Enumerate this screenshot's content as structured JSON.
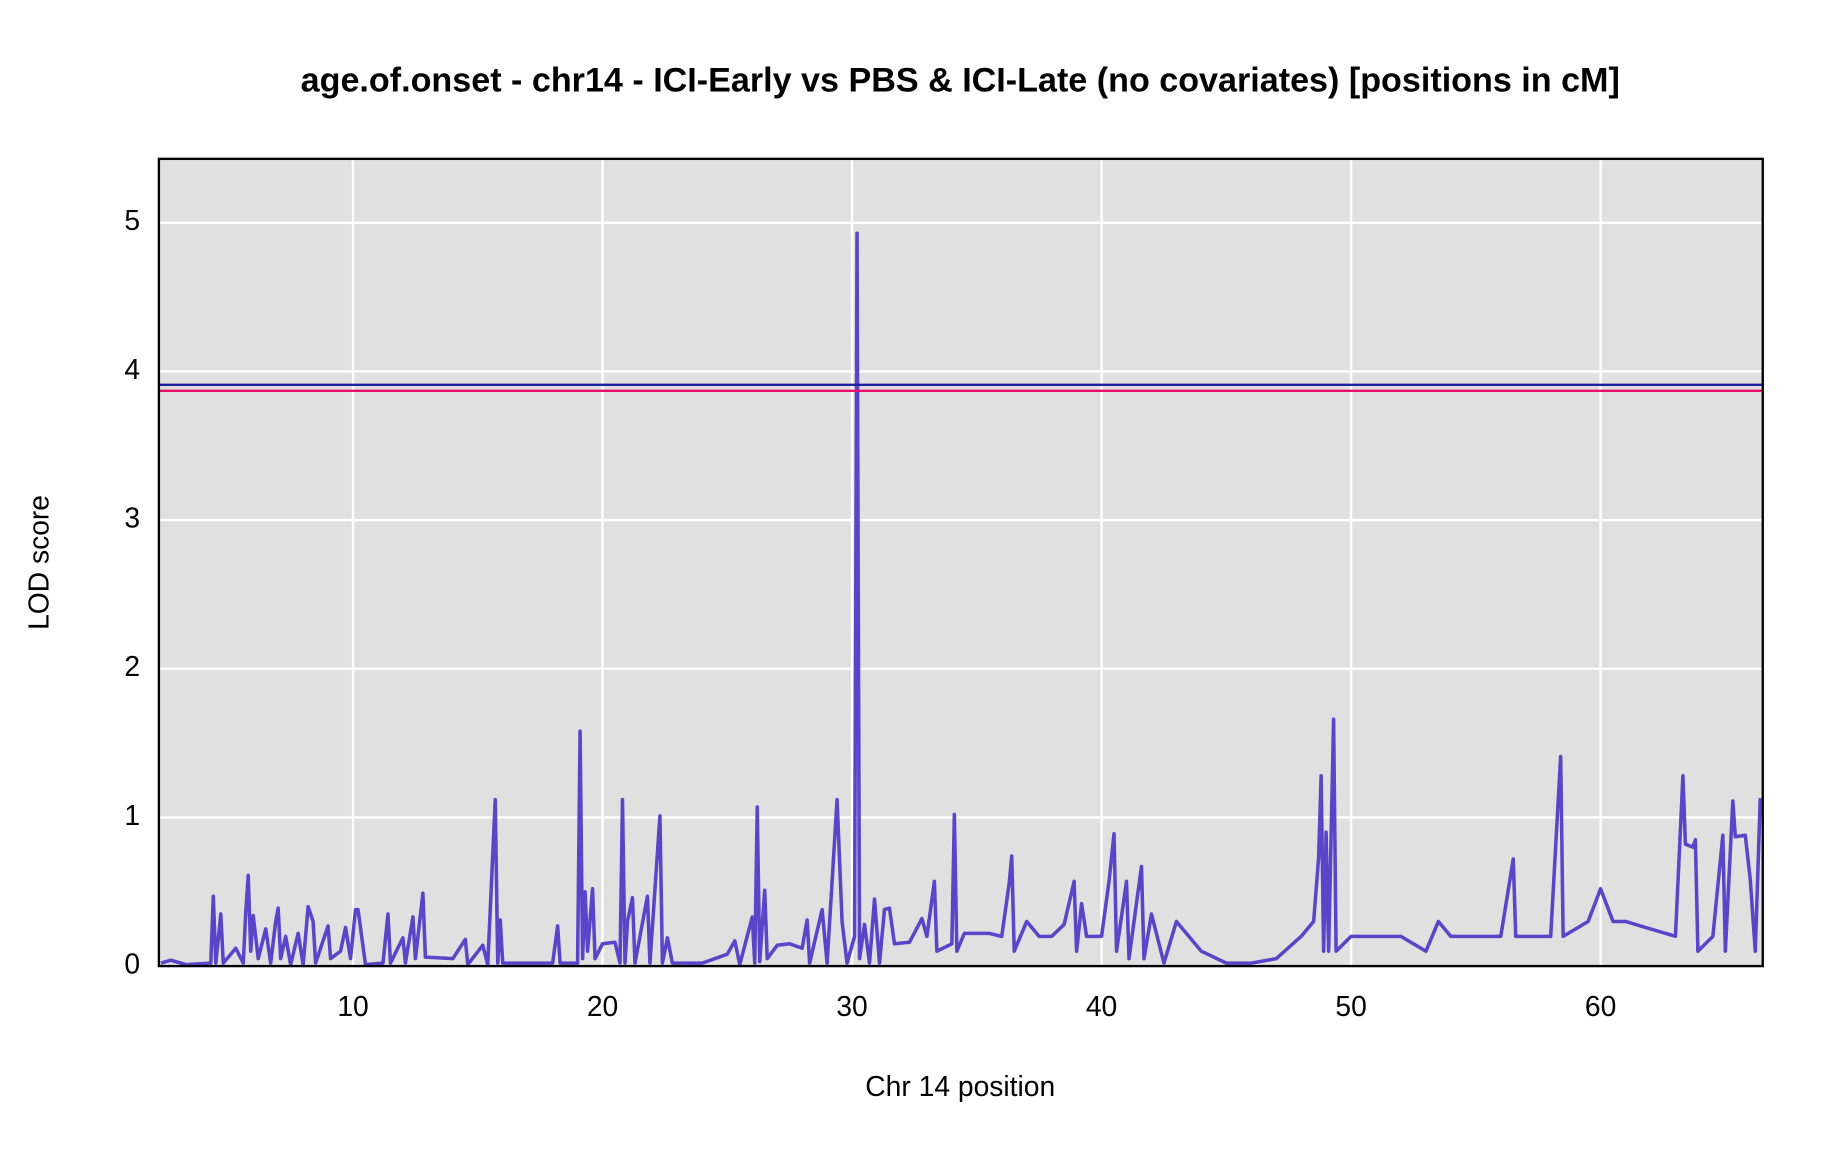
{
  "chart_data": {
    "type": "line",
    "title": "age.of.onset - chr14 - ICI-Early vs PBS & ICI-Late (no covariates) [positions in cM]",
    "xlabel": "Chr 14 position",
    "ylabel": "LOD score",
    "xlim": [
      2.22,
      66.5
    ],
    "ylim": [
      0,
      5.43
    ],
    "xticks": [
      10,
      20,
      30,
      40,
      50,
      60
    ],
    "yticks": [
      0,
      1,
      2,
      3,
      4,
      5
    ],
    "grid": true,
    "background": "#e0e0e0",
    "hlines": [
      {
        "value": 3.91,
        "color": "#1f1fa0"
      },
      {
        "value": 3.87,
        "color": "#e8106e"
      }
    ],
    "series": [
      {
        "color": "#5a44c8",
        "x": [
          2.3,
          2.7,
          3.3,
          4.3,
          4.4,
          4.5,
          4.7,
          4.8,
          5.3,
          5.6,
          5.7,
          5.8,
          5.9,
          6.0,
          6.2,
          6.5,
          6.7,
          6.9,
          7.0,
          7.1,
          7.3,
          7.5,
          7.8,
          8.0,
          8.2,
          8.4,
          8.5,
          9.0,
          9.1,
          9.5,
          9.7,
          9.9,
          10.1,
          10.2,
          10.5,
          11.2,
          11.4,
          11.5,
          12.0,
          12.1,
          12.4,
          12.5,
          12.8,
          12.9,
          14.0,
          14.5,
          14.6,
          15.2,
          15.4,
          15.7,
          15.8,
          15.9,
          16.0,
          17.0,
          18.0,
          18.2,
          18.3,
          19.0,
          19.1,
          19.2,
          19.3,
          19.4,
          19.6,
          19.7,
          20.0,
          20.5,
          20.7,
          20.8,
          20.9,
          21.0,
          21.2,
          21.3,
          21.8,
          21.9,
          22.3,
          22.4,
          22.6,
          22.8,
          24.0,
          25.0,
          25.3,
          25.5,
          26.0,
          26.1,
          26.2,
          26.3,
          26.5,
          26.6,
          27.0,
          27.5,
          28.0,
          28.2,
          28.3,
          28.8,
          29.0,
          29.4,
          29.6,
          29.8,
          30.1,
          30.2,
          30.3,
          30.5,
          30.7,
          30.9,
          31.1,
          31.3,
          31.5,
          31.7,
          32.3,
          32.8,
          33.0,
          33.3,
          33.4,
          34.0,
          34.1,
          34.2,
          34.5,
          35.5,
          36.0,
          36.3,
          36.4,
          36.5,
          37.0,
          37.5,
          38.0,
          38.5,
          38.9,
          39.0,
          39.2,
          39.4,
          40.0,
          40.3,
          40.5,
          40.6,
          41.0,
          41.1,
          41.6,
          41.7,
          42.0,
          42.5,
          43.0,
          44.0,
          45.0,
          46.0,
          47.0,
          48.0,
          48.5,
          48.7,
          48.8,
          48.9,
          49.0,
          49.1,
          49.3,
          49.4,
          50.0,
          51.0,
          52.0,
          53.0,
          53.5,
          54.0,
          55.0,
          56.0,
          56.5,
          56.6,
          58.0,
          58.4,
          58.5,
          59.5,
          60.0,
          60.5,
          61.0,
          62.0,
          63.0,
          63.3,
          63.4,
          63.7,
          63.8,
          63.9,
          64.5,
          64.9,
          65.0,
          65.3,
          65.4,
          65.8,
          66.0,
          66.2,
          66.4
        ],
        "values": [
          0.02,
          0.04,
          0.01,
          0.02,
          0.47,
          0.02,
          0.35,
          0.02,
          0.12,
          0.02,
          0.36,
          0.61,
          0.1,
          0.34,
          0.05,
          0.25,
          0.02,
          0.3,
          0.39,
          0.05,
          0.2,
          0.01,
          0.22,
          0.01,
          0.4,
          0.3,
          0.02,
          0.27,
          0.05,
          0.1,
          0.26,
          0.05,
          0.38,
          0.38,
          0.01,
          0.02,
          0.35,
          0.02,
          0.19,
          0.02,
          0.33,
          0.05,
          0.49,
          0.06,
          0.05,
          0.18,
          0.01,
          0.14,
          0.01,
          1.12,
          0.02,
          0.31,
          0.02,
          0.02,
          0.02,
          0.27,
          0.02,
          0.02,
          1.58,
          0.05,
          0.5,
          0.1,
          0.52,
          0.05,
          0.15,
          0.16,
          0.02,
          1.12,
          0.02,
          0.3,
          0.46,
          0.02,
          0.47,
          0.02,
          1.01,
          0.02,
          0.19,
          0.02,
          0.02,
          0.08,
          0.17,
          0.01,
          0.33,
          0.02,
          1.07,
          0.03,
          0.51,
          0.05,
          0.14,
          0.15,
          0.12,
          0.31,
          0.02,
          0.38,
          0.02,
          1.12,
          0.3,
          0.02,
          0.2,
          4.93,
          0.05,
          0.28,
          0.02,
          0.45,
          0.02,
          0.38,
          0.39,
          0.15,
          0.16,
          0.32,
          0.2,
          0.57,
          0.1,
          0.15,
          1.02,
          0.1,
          0.22,
          0.22,
          0.2,
          0.56,
          0.74,
          0.1,
          0.3,
          0.2,
          0.2,
          0.28,
          0.57,
          0.1,
          0.42,
          0.2,
          0.2,
          0.57,
          0.89,
          0.1,
          0.57,
          0.05,
          0.67,
          0.05,
          0.35,
          0.02,
          0.3,
          0.1,
          0.02,
          0.02,
          0.05,
          0.2,
          0.3,
          0.73,
          1.28,
          0.1,
          0.9,
          0.1,
          1.66,
          0.1,
          0.2,
          0.2,
          0.2,
          0.1,
          0.3,
          0.2,
          0.2,
          0.2,
          0.72,
          0.2,
          0.2,
          1.41,
          0.2,
          0.3,
          0.52,
          0.3,
          0.3,
          0.25,
          0.2,
          1.28,
          0.82,
          0.8,
          0.85,
          0.1,
          0.2,
          0.88,
          0.1,
          1.11,
          0.87,
          0.88,
          0.58,
          0.1,
          1.13
        ]
      }
    ]
  }
}
